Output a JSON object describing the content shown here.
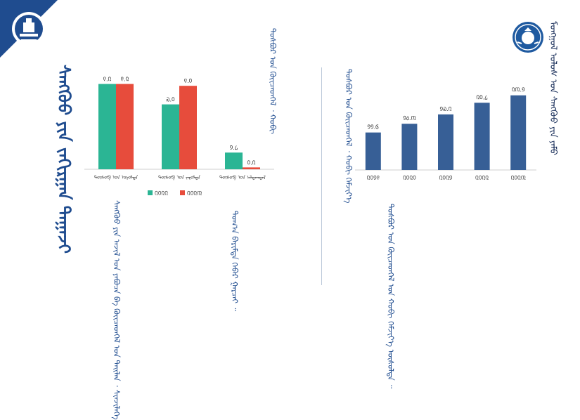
{
  "page": {
    "title": "ᠰᠠᠩᠬᠦᠦ ᠶᠢᠨ ᠵᠠᠬᠢᠷᠭᠠᠨ ᠳᠠᠭᠠᠵᠢ",
    "seal_text": "ᠮᠣᠩᠭᠣᠯ ᠤᠯᠤᠰ ᠤᠨ ᠰᠠᠩᠬᠦᠦ ᠶᠢᠨ ᠶᠠᠮᠤ",
    "left_paragraph": "ᠰᠠᠩᠬᠦᠦ ᠶᠢᠨ ᠠᠵᠢᠯ ᠤᠨ ᠶᠠᠪᠤᠴᠠ ᠪᠠ ᠭᠦᠢᠴᠡᠳᠭᠡᠯ ᠤᠨ ᠲᠠᠢᠯᠠᠨ ᠂ ᠰᠢᠨᠵᠢᠯᠡᠭᠡ",
    "left_note": "ᠲᠣᠭ᠎ᠠ ᠪᠠᠷᠢᠮᠲᠠ ᠬᠡᠪᠡᠷ ᠭᠠᠷᠴᠠᠢ ᠃",
    "middle_paragraph": "ᠲᠣᠰᠪᠤᠷ ᠤᠨ ᠭᠦᠢᠴᠡᠳᠭᠡᠯ ᠂ ᠬᠤᠪᠢ",
    "right_axis_title": "ᠲᠣᠰᠪᠤᠷ ᠤᠨ ᠭᠦᠢᠴᠡᠳᠭᠡᠯ ᠂ ᠬᠤᠪᠢ ᠬᠡᠮᠵᠢᠶ᠎ᠡ",
    "right_paragraph": "ᠲᠣᠰᠪᠤᠷ ᠤᠨ ᠭᠦᠢᠴᠡᠳᠭᠡᠯ ᠤᠨ ᠬᠤᠪᠢ ᠬᠡᠮᠵᠢᠶ᠎ᠡ ᠥᠰᠦᠯᠲᠡ ᠃"
  },
  "colors": {
    "teal": "#2bb594",
    "red": "#e74c3c",
    "navy": "#375f96",
    "title": "#1f4c8f"
  },
  "chart_data": [
    {
      "type": "bar",
      "categories": [
        "ᠲᠥᠰᠦᠪ ᠤᠨ ᠣᠷᠣᠯᠲᠠ",
        "ᠲᠥᠰᠦᠪ ᠤᠨ ᠵᠠᠷᠣᠯᠲᠠ",
        "ᠲᠥᠰᠦᠪ ᠤᠨ ᠠᠯᠳᠠᠭᠳᠠᠯ"
      ],
      "series": [
        {
          "name": "᠒᠐᠒᠒",
          "color": "#2bb594",
          "values": [
            9.2,
            7.0,
            1.8
          ],
          "labels": [
            "᠙.᠒",
            "᠗.᠐",
            "᠑.᠘"
          ]
        },
        {
          "name": "᠒᠐᠒᠓",
          "color": "#e74c3c",
          "values": [
            9.2,
            9.0,
            0.2
          ],
          "labels": [
            "᠙.᠒",
            "᠙.᠐",
            "᠐.᠒"
          ]
        }
      ],
      "ylim": [
        0,
        10
      ],
      "grid": false,
      "legend": "bottom"
    },
    {
      "type": "bar",
      "categories": [
        "᠒᠐᠑᠙",
        "᠒᠐᠒᠐",
        "᠒᠐᠒᠑",
        "᠒᠐᠒᠒",
        "᠒᠐᠒᠓"
      ],
      "values": [
        11.6,
        14.3,
        17.2,
        20.8,
        23.1
      ],
      "labels": [
        "᠑᠑.᠖",
        "᠑᠔.᠓",
        "᠑᠗.᠒",
        "᠒᠐.᠘",
        "᠒᠓.᠑"
      ],
      "ylim": [
        0,
        25
      ],
      "grid": false,
      "legend": "none"
    }
  ]
}
